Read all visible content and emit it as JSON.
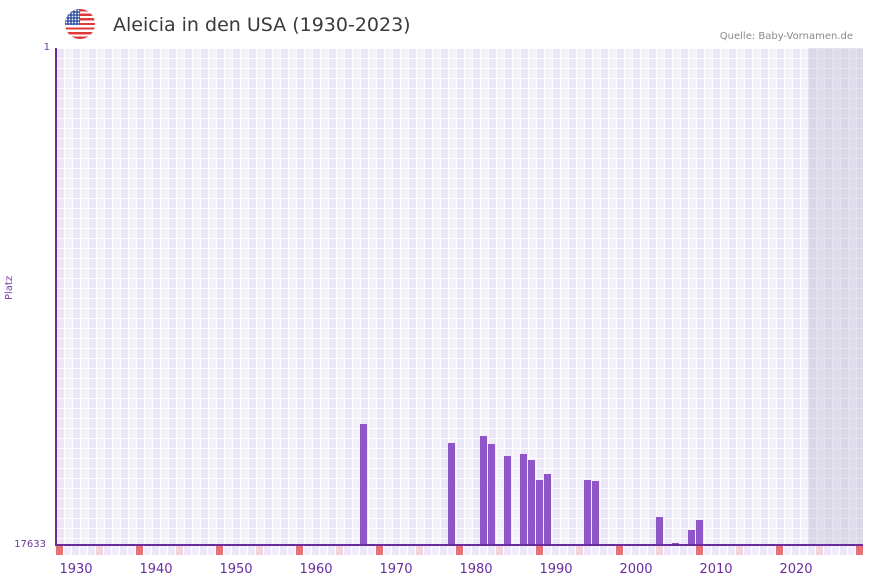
{
  "header": {
    "flag_icon": "us-flag-icon",
    "title": "Aleicia in den USA (1930-2023)",
    "source": "Quelle: Baby-Vornamen.de"
  },
  "chart_data": {
    "type": "bar",
    "title": "Aleicia in den USA (1930-2023)",
    "xlabel": "",
    "ylabel": "Platz",
    "ylim": [
      17633,
      1
    ],
    "y_inverted": true,
    "y_ticks": [
      "1",
      "17633"
    ],
    "x_ticks": [
      "1930",
      "1940",
      "1950",
      "1960",
      "1970",
      "1980",
      "1990",
      "2000",
      "2010",
      "2020"
    ],
    "x_range": [
      1928,
      2028
    ],
    "grid": true,
    "legend": null,
    "categories": [
      1966,
      1977,
      1981,
      1982,
      1984,
      1986,
      1987,
      1988,
      1989,
      1994,
      1995,
      2003,
      2005,
      2007,
      2008
    ],
    "values": [
      13340,
      14015,
      13766,
      14050,
      14476,
      14405,
      14618,
      15328,
      15115,
      15328,
      15363,
      16641,
      17563,
      17102,
      16747
    ],
    "series": [
      {
        "name": "Platz",
        "values": [
          13340,
          14015,
          13766,
          14050,
          14476,
          14405,
          14618,
          15328,
          15115,
          15328,
          15363,
          16641,
          17563,
          17102,
          16747
        ]
      }
    ],
    "shaded_region_start": 2022,
    "colors": {
      "bar": "#8e56c8",
      "axis": "#6a2c9c",
      "marker_decade": "#e57373",
      "marker_half": "#f4d4dc"
    }
  },
  "axis": {
    "y_top": "1",
    "y_bottom": "17633",
    "y_label": "Platz"
  }
}
